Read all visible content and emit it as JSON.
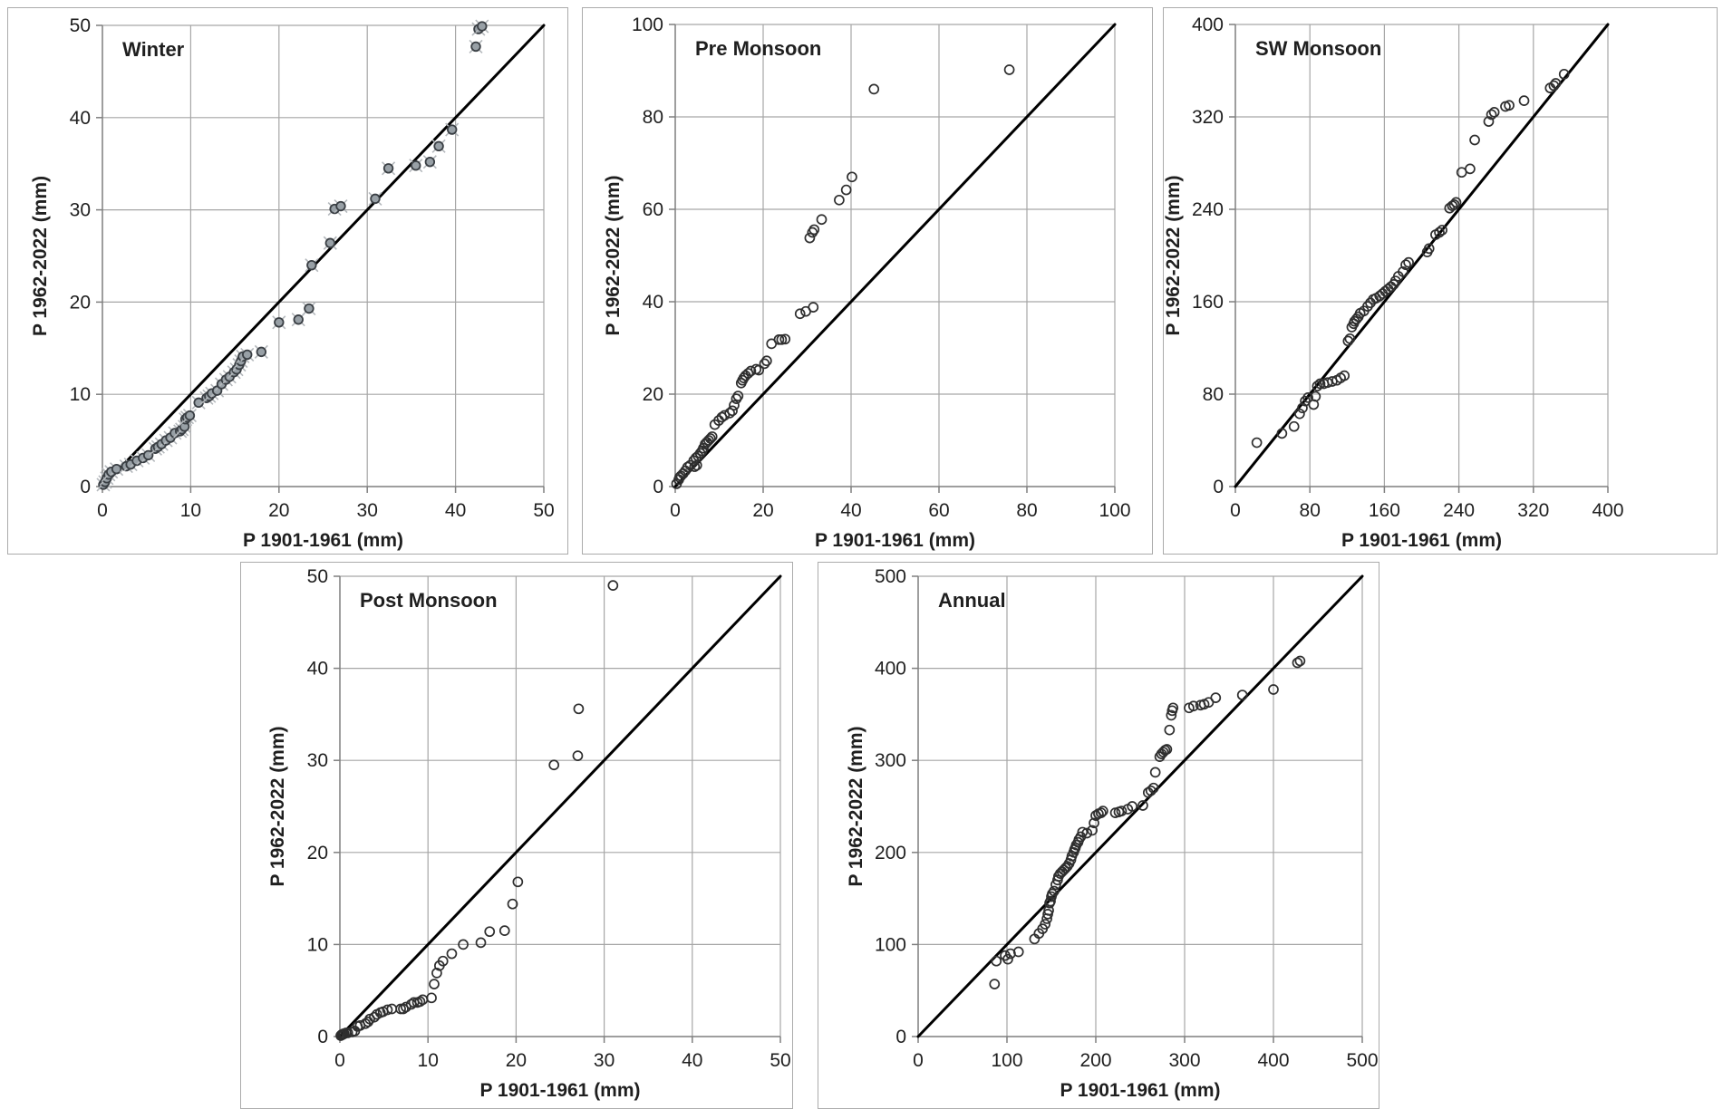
{
  "figure": {
    "background": "#ffffff",
    "grid_color": "#a6a6a6",
    "axis_color": "#7f7f7f",
    "diagonal_color": "#000000",
    "text_color": "#1f1f1f",
    "open_marker_stroke": "#2f2f2f",
    "winter_marker_fill": "#98a0a6",
    "winter_marker_stroke": "#3a3f44",
    "winter_marker_cross": "#b4b8bc"
  },
  "chart_data": [
    {
      "id": "winter",
      "type": "scatter",
      "title": "Winter",
      "xlabel": "P 1901-1961 (mm)",
      "ylabel": "P 1962-2022 (mm)",
      "xlim": [
        0,
        50
      ],
      "ylim": [
        0,
        50
      ],
      "xticks": [
        0,
        10,
        20,
        30,
        40,
        50
      ],
      "yticks": [
        0,
        10,
        20,
        30,
        40,
        50
      ],
      "grid": true,
      "diagonal_1to1": true,
      "marker": "gray-filled-circle-with-cross",
      "points": [
        [
          0.1,
          0.2
        ],
        [
          0.3,
          0.5
        ],
        [
          0.5,
          0.9
        ],
        [
          0.7,
          1.3
        ],
        [
          1.0,
          1.6
        ],
        [
          1.6,
          1.9
        ],
        [
          2.7,
          2.2
        ],
        [
          3.2,
          2.4
        ],
        [
          3.9,
          2.8
        ],
        [
          4.6,
          3.1
        ],
        [
          5.2,
          3.4
        ],
        [
          6.0,
          4.1
        ],
        [
          6.3,
          4.3
        ],
        [
          6.7,
          4.6
        ],
        [
          7.2,
          5.0
        ],
        [
          7.7,
          5.3
        ],
        [
          8.2,
          5.8
        ],
        [
          8.8,
          6.0
        ],
        [
          9.0,
          6.2
        ],
        [
          9.3,
          6.5
        ],
        [
          9.4,
          7.3
        ],
        [
          9.6,
          7.5
        ],
        [
          9.9,
          7.7
        ],
        [
          10.9,
          9.1
        ],
        [
          11.8,
          9.6
        ],
        [
          12.1,
          9.8
        ],
        [
          12.4,
          10.1
        ],
        [
          13.0,
          10.4
        ],
        [
          13.5,
          11.1
        ],
        [
          14.0,
          11.6
        ],
        [
          14.4,
          11.9
        ],
        [
          14.9,
          12.4
        ],
        [
          15.2,
          12.7
        ],
        [
          15.5,
          13.2
        ],
        [
          15.7,
          13.6
        ],
        [
          15.9,
          14.1
        ],
        [
          16.4,
          14.3
        ],
        [
          18.0,
          14.6
        ],
        [
          20.0,
          17.8
        ],
        [
          22.2,
          18.1
        ],
        [
          23.4,
          19.3
        ],
        [
          23.7,
          24.0
        ],
        [
          25.8,
          26.4
        ],
        [
          26.3,
          30.1
        ],
        [
          27.0,
          30.4
        ],
        [
          30.9,
          31.2
        ],
        [
          32.4,
          34.5
        ],
        [
          35.5,
          34.8
        ],
        [
          37.1,
          35.2
        ],
        [
          38.1,
          36.9
        ],
        [
          39.6,
          38.7
        ],
        [
          42.3,
          47.7
        ],
        [
          42.6,
          49.6
        ],
        [
          43.0,
          49.9
        ]
      ]
    },
    {
      "id": "pre_monsoon",
      "type": "scatter",
      "title": "Pre Monsoon",
      "xlabel": "P 1901-1961 (mm)",
      "ylabel": "P 1962-2022 (mm)",
      "xlim": [
        0,
        100
      ],
      "ylim": [
        0,
        100
      ],
      "xticks": [
        0,
        20,
        40,
        60,
        80,
        100
      ],
      "yticks": [
        0,
        20,
        40,
        60,
        80,
        100
      ],
      "grid": true,
      "diagonal_1to1": true,
      "marker": "open-circle",
      "points": [
        [
          0.3,
          0.6
        ],
        [
          0.8,
          1.5
        ],
        [
          1.0,
          2.0
        ],
        [
          1.3,
          2.3
        ],
        [
          1.8,
          2.8
        ],
        [
          2.3,
          3.4
        ],
        [
          2.8,
          4.2
        ],
        [
          3.4,
          4.6
        ],
        [
          4.4,
          4.3
        ],
        [
          4.9,
          4.6
        ],
        [
          4.2,
          5.6
        ],
        [
          4.7,
          6.2
        ],
        [
          5.2,
          6.6
        ],
        [
          5.7,
          7.2
        ],
        [
          6.1,
          7.7
        ],
        [
          6.4,
          8.3
        ],
        [
          6.8,
          9.2
        ],
        [
          7.2,
          9.6
        ],
        [
          7.6,
          10.0
        ],
        [
          8.0,
          10.4
        ],
        [
          8.4,
          10.8
        ],
        [
          9.0,
          13.4
        ],
        [
          9.9,
          14.3
        ],
        [
          10.6,
          15.0
        ],
        [
          11.2,
          15.4
        ],
        [
          12.4,
          15.9
        ],
        [
          13.0,
          16.4
        ],
        [
          13.4,
          17.6
        ],
        [
          13.9,
          19.0
        ],
        [
          14.3,
          19.6
        ],
        [
          15.0,
          22.4
        ],
        [
          15.3,
          23.0
        ],
        [
          15.6,
          23.5
        ],
        [
          16.0,
          24.0
        ],
        [
          16.6,
          24.5
        ],
        [
          17.2,
          25.0
        ],
        [
          18.4,
          25.4
        ],
        [
          19.0,
          25.2
        ],
        [
          20.3,
          26.6
        ],
        [
          20.8,
          27.2
        ],
        [
          21.9,
          30.9
        ],
        [
          23.6,
          31.8
        ],
        [
          24.2,
          31.8
        ],
        [
          25.0,
          31.9
        ],
        [
          28.4,
          37.4
        ],
        [
          29.7,
          37.9
        ],
        [
          31.4,
          38.8
        ],
        [
          30.6,
          53.8
        ],
        [
          31.2,
          55.0
        ],
        [
          31.6,
          55.6
        ],
        [
          33.3,
          57.8
        ],
        [
          37.3,
          62.0
        ],
        [
          38.9,
          64.2
        ],
        [
          40.2,
          67.0
        ],
        [
          45.2,
          86.0
        ],
        [
          76.0,
          90.2
        ]
      ]
    },
    {
      "id": "sw_monsoon",
      "type": "scatter",
      "title": "SW Monsoon",
      "xlabel": "P 1901-1961 (mm)",
      "ylabel": "P 1962-2022 (mm)",
      "xlim": [
        0,
        400
      ],
      "ylim": [
        0,
        400
      ],
      "xticks": [
        0,
        80,
        160,
        240,
        320,
        400
      ],
      "yticks": [
        0,
        80,
        160,
        240,
        320,
        400
      ],
      "grid": true,
      "diagonal_1to1": true,
      "marker": "open-circle",
      "points": [
        [
          23,
          38
        ],
        [
          50,
          46
        ],
        [
          63,
          52
        ],
        [
          69,
          63
        ],
        [
          72,
          68
        ],
        [
          75,
          74
        ],
        [
          78,
          77
        ],
        [
          84,
          71
        ],
        [
          86,
          78
        ],
        [
          88,
          87
        ],
        [
          91,
          89
        ],
        [
          95,
          89
        ],
        [
          99,
          90
        ],
        [
          104,
          91
        ],
        [
          109,
          92
        ],
        [
          113,
          94
        ],
        [
          117,
          96
        ],
        [
          121,
          126
        ],
        [
          123,
          128
        ],
        [
          125,
          138
        ],
        [
          127,
          141
        ],
        [
          128,
          143
        ],
        [
          130,
          145
        ],
        [
          132,
          147
        ],
        [
          134,
          150
        ],
        [
          138,
          152
        ],
        [
          142,
          156
        ],
        [
          145,
          159
        ],
        [
          148,
          162
        ],
        [
          151,
          163
        ],
        [
          155,
          165
        ],
        [
          158,
          167
        ],
        [
          161,
          169
        ],
        [
          164,
          171
        ],
        [
          167,
          173
        ],
        [
          170,
          175
        ],
        [
          172,
          178
        ],
        [
          175,
          182
        ],
        [
          180,
          186
        ],
        [
          183,
          192
        ],
        [
          186,
          194
        ],
        [
          206,
          203
        ],
        [
          208,
          206
        ],
        [
          215,
          218
        ],
        [
          219,
          220
        ],
        [
          222,
          222
        ],
        [
          230,
          241
        ],
        [
          233,
          243
        ],
        [
          235,
          244
        ],
        [
          237,
          246
        ],
        [
          243,
          272
        ],
        [
          252,
          275
        ],
        [
          257,
          300
        ],
        [
          272,
          316
        ],
        [
          275,
          322
        ],
        [
          278,
          324
        ],
        [
          290,
          329
        ],
        [
          294,
          330
        ],
        [
          310,
          334
        ],
        [
          338,
          345
        ],
        [
          342,
          347
        ],
        [
          344,
          349
        ],
        [
          353,
          357
        ]
      ]
    },
    {
      "id": "post_monsoon",
      "type": "scatter",
      "title": "Post Monsoon",
      "xlabel": "P 1901-1961 (mm)",
      "ylabel": "P 1962-2022 (mm)",
      "xlim": [
        0,
        50
      ],
      "ylim": [
        0,
        50
      ],
      "xticks": [
        0,
        10,
        20,
        30,
        40,
        50
      ],
      "yticks": [
        0,
        10,
        20,
        30,
        40,
        50
      ],
      "grid": true,
      "diagonal_1to1": true,
      "marker": "open-circle",
      "points": [
        [
          0.1,
          0.1
        ],
        [
          0.2,
          0.2
        ],
        [
          0.3,
          0.2
        ],
        [
          0.4,
          0.3
        ],
        [
          0.5,
          0.3
        ],
        [
          0.7,
          0.4
        ],
        [
          0.9,
          0.4
        ],
        [
          1.4,
          0.5
        ],
        [
          1.7,
          0.6
        ],
        [
          2.0,
          1.1
        ],
        [
          2.3,
          1.2
        ],
        [
          2.9,
          1.4
        ],
        [
          3.2,
          1.6
        ],
        [
          3.4,
          1.9
        ],
        [
          3.9,
          2.1
        ],
        [
          4.2,
          2.4
        ],
        [
          4.6,
          2.6
        ],
        [
          4.9,
          2.7
        ],
        [
          5.4,
          2.9
        ],
        [
          5.9,
          3.0
        ],
        [
          6.9,
          3.0
        ],
        [
          7.2,
          3.0
        ],
        [
          7.5,
          3.2
        ],
        [
          8.1,
          3.5
        ],
        [
          8.4,
          3.7
        ],
        [
          8.8,
          3.7
        ],
        [
          9.1,
          3.8
        ],
        [
          9.4,
          4.0
        ],
        [
          10.4,
          4.2
        ],
        [
          10.7,
          5.7
        ],
        [
          11.0,
          6.9
        ],
        [
          11.3,
          7.7
        ],
        [
          11.7,
          8.2
        ],
        [
          12.7,
          9.0
        ],
        [
          14.0,
          10.0
        ],
        [
          16.0,
          10.2
        ],
        [
          17.0,
          11.4
        ],
        [
          18.7,
          11.5
        ],
        [
          19.6,
          14.4
        ],
        [
          20.2,
          16.8
        ],
        [
          24.3,
          29.5
        ],
        [
          27.0,
          30.5
        ],
        [
          27.1,
          35.6
        ],
        [
          31.0,
          49.0
        ]
      ]
    },
    {
      "id": "annual",
      "type": "scatter",
      "title": "Annual",
      "xlabel": "P 1901-1961 (mm)",
      "ylabel": "P 1962-2022 (mm)",
      "xlim": [
        0,
        500
      ],
      "ylim": [
        0,
        500
      ],
      "xticks": [
        0,
        100,
        200,
        300,
        400,
        500
      ],
      "yticks": [
        0,
        100,
        200,
        300,
        400,
        500
      ],
      "grid": true,
      "diagonal_1to1": true,
      "marker": "open-circle",
      "points": [
        [
          86,
          57
        ],
        [
          88,
          82
        ],
        [
          98,
          88
        ],
        [
          101,
          84
        ],
        [
          104,
          90
        ],
        [
          113,
          92
        ],
        [
          131,
          106
        ],
        [
          136,
          112
        ],
        [
          140,
          117
        ],
        [
          143,
          122
        ],
        [
          145,
          128
        ],
        [
          146,
          133
        ],
        [
          147,
          137
        ],
        [
          148,
          145
        ],
        [
          149,
          147
        ],
        [
          150,
          152
        ],
        [
          151,
          155
        ],
        [
          153,
          158
        ],
        [
          155,
          165
        ],
        [
          157,
          170
        ],
        [
          158,
          174
        ],
        [
          160,
          177
        ],
        [
          162,
          179
        ],
        [
          164,
          181
        ],
        [
          166,
          183
        ],
        [
          168,
          185
        ],
        [
          170,
          188
        ],
        [
          172,
          192
        ],
        [
          173,
          196
        ],
        [
          175,
          200
        ],
        [
          176,
          203
        ],
        [
          177,
          205
        ],
        [
          178,
          208
        ],
        [
          180,
          211
        ],
        [
          181,
          214
        ],
        [
          183,
          217
        ],
        [
          185,
          222
        ],
        [
          190,
          221
        ],
        [
          196,
          224
        ],
        [
          198,
          232
        ],
        [
          200,
          240
        ],
        [
          203,
          242
        ],
        [
          206,
          243
        ],
        [
          208,
          245
        ],
        [
          222,
          243
        ],
        [
          226,
          244
        ],
        [
          229,
          245
        ],
        [
          236,
          247
        ],
        [
          241,
          250
        ],
        [
          253,
          251
        ],
        [
          259,
          265
        ],
        [
          262,
          267
        ],
        [
          265,
          270
        ],
        [
          267,
          287
        ],
        [
          272,
          304
        ],
        [
          274,
          307
        ],
        [
          276,
          309
        ],
        [
          278,
          311
        ],
        [
          280,
          312
        ],
        [
          283,
          333
        ],
        [
          285,
          349
        ],
        [
          286,
          354
        ],
        [
          287,
          357
        ],
        [
          305,
          357
        ],
        [
          310,
          359
        ],
        [
          318,
          360
        ],
        [
          322,
          361
        ],
        [
          327,
          363
        ],
        [
          335,
          368
        ],
        [
          365,
          371
        ],
        [
          400,
          377
        ],
        [
          427,
          406
        ],
        [
          430,
          408
        ]
      ]
    }
  ]
}
